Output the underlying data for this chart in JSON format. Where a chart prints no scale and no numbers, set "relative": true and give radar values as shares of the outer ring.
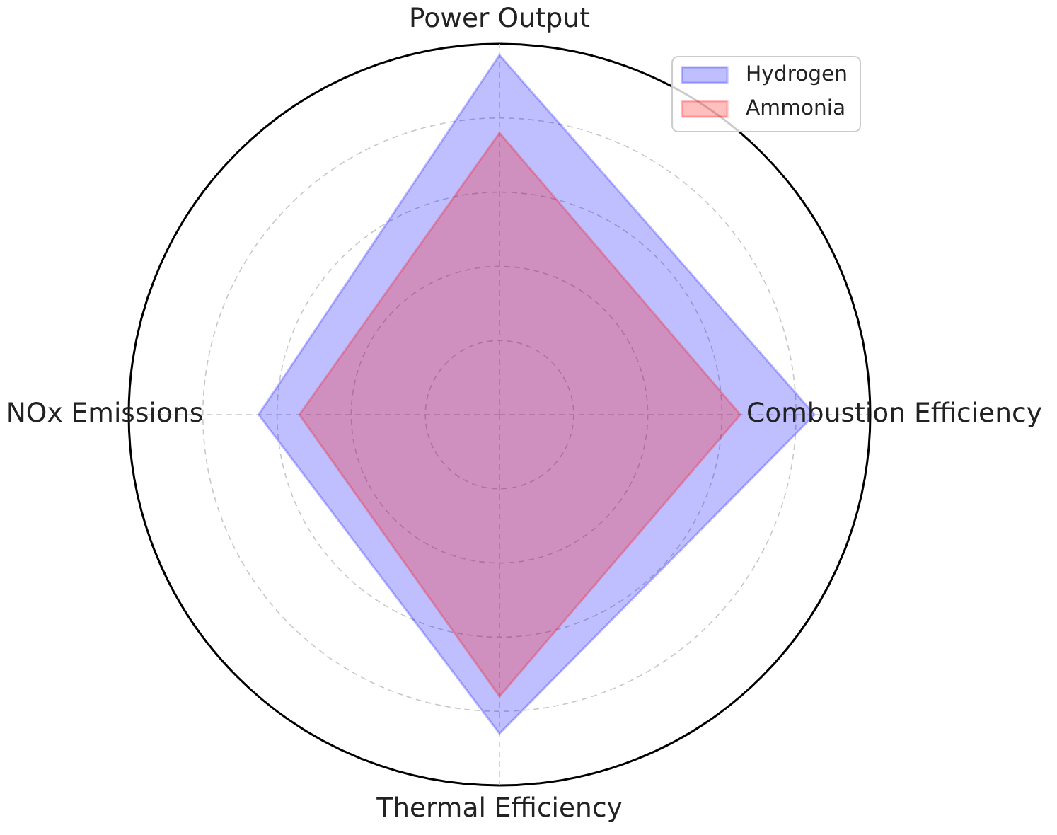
{
  "chart_data": {
    "type": "radar",
    "categories": [
      "Power Output",
      "Combustion Efficiency",
      "Thermal Efficiency",
      "NOx Emissions"
    ],
    "series": [
      {
        "name": "Hydrogen",
        "color": "#0000ff",
        "values": [
          0.97,
          0.85,
          0.86,
          0.65
        ]
      },
      {
        "name": "Ammonia",
        "color": "#ff0000",
        "values": [
          0.76,
          0.65,
          0.76,
          0.54
        ]
      }
    ],
    "relative": true,
    "grid": true,
    "legend": "top right"
  }
}
